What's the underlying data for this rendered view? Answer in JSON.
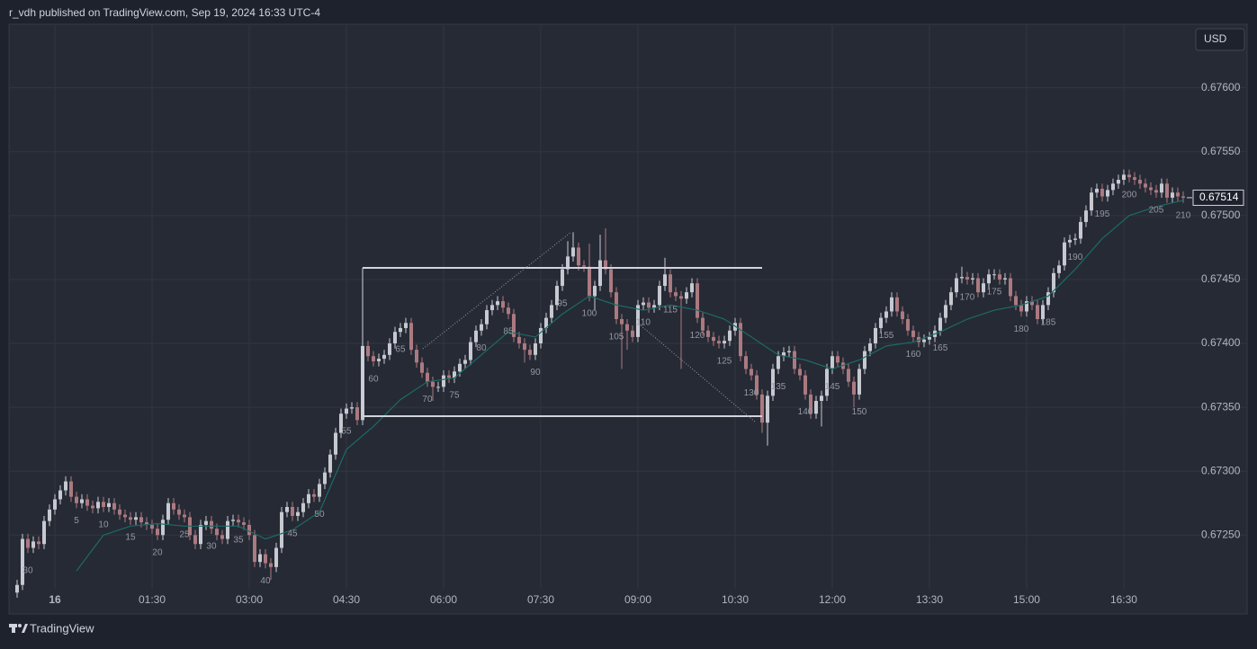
{
  "header": {
    "title": "r_vdh published on TradingView.com, Sep 19, 2024 16:33 UTC-4",
    "currency": "USD",
    "brand": "TradingView"
  },
  "chart_data": {
    "type": "candlestick",
    "up_color": "#c7c9d0",
    "down_color": "#ab7a80",
    "grid": true,
    "ylim": [
      0.67208,
      0.67649
    ],
    "yticks": [
      {
        "value": 0.6725,
        "label": "0.67250"
      },
      {
        "value": 0.673,
        "label": "0.67300"
      },
      {
        "value": 0.6735,
        "label": "0.67350"
      },
      {
        "value": 0.674,
        "label": "0.67400"
      },
      {
        "value": 0.6745,
        "label": "0.67450"
      },
      {
        "value": 0.675,
        "label": "0.67500"
      },
      {
        "value": 0.6755,
        "label": "0.67550"
      },
      {
        "value": 0.676,
        "label": "0.67600"
      }
    ],
    "xlim": [
      -7.5,
      211.67
    ],
    "xticks": [
      {
        "value": 1,
        "label": "16"
      },
      {
        "value": 19,
        "label": "01:30"
      },
      {
        "value": 37,
        "label": "03:00"
      },
      {
        "value": 55,
        "label": "04:30"
      },
      {
        "value": 73,
        "label": "06:00"
      },
      {
        "value": 91,
        "label": "07:30"
      },
      {
        "value": 109,
        "label": "09:00"
      },
      {
        "value": 127,
        "label": "10:30"
      },
      {
        "value": 145,
        "label": "12:00"
      },
      {
        "value": 163,
        "label": "13:30"
      },
      {
        "value": 181,
        "label": "15:00"
      },
      {
        "value": 199,
        "label": "16:30"
      }
    ],
    "x": [
      -6,
      -5,
      -4,
      -3,
      -2,
      -1,
      0,
      1,
      2,
      3,
      4,
      5,
      6,
      7,
      8,
      9,
      10,
      11,
      12,
      13,
      14,
      15,
      16,
      17,
      18,
      19,
      20,
      21,
      22,
      23,
      24,
      25,
      26,
      27,
      28,
      29,
      30,
      31,
      32,
      33,
      34,
      35,
      36,
      37,
      38,
      39,
      40,
      41,
      42,
      43,
      44,
      45,
      46,
      47,
      48,
      49,
      50,
      51,
      52,
      53,
      54,
      55,
      56,
      57,
      58,
      59,
      60,
      61,
      62,
      63,
      64,
      65,
      66,
      67,
      68,
      69,
      70,
      71,
      72,
      73,
      74,
      75,
      76,
      77,
      78,
      79,
      80,
      81,
      82,
      83,
      84,
      85,
      86,
      87,
      88,
      89,
      90,
      91,
      92,
      93,
      94,
      95,
      96,
      97,
      98,
      99,
      100,
      101,
      102,
      103,
      104,
      105,
      106,
      107,
      108,
      109,
      110,
      111,
      112,
      113,
      114,
      115,
      116,
      117,
      118,
      119,
      120,
      121,
      122,
      123,
      124,
      125,
      126,
      127,
      128,
      129,
      130,
      131,
      132,
      133,
      134,
      135,
      136,
      137,
      138,
      139,
      140,
      141,
      142,
      143,
      144,
      145,
      146,
      147,
      148,
      149,
      150,
      151,
      152,
      153,
      154,
      155,
      156,
      157,
      158,
      159,
      160,
      161,
      162,
      163,
      164,
      165,
      166,
      167,
      168,
      169,
      170,
      171,
      172,
      173,
      174,
      175,
      176,
      177,
      178,
      179,
      180,
      181,
      182,
      183,
      184,
      185,
      186,
      187,
      188,
      189,
      190,
      191,
      192,
      193,
      194,
      195,
      196,
      197,
      198,
      199,
      200,
      201,
      202,
      203,
      204,
      205,
      206,
      207,
      208,
      209,
      210
    ],
    "open": [
      0.67205,
      0.67211,
      0.67247,
      0.6724,
      0.67245,
      0.67243,
      0.67261,
      0.6727,
      0.67278,
      0.67285,
      0.67292,
      0.6728,
      0.67275,
      0.67278,
      0.67273,
      0.67271,
      0.67276,
      0.67272,
      0.67275,
      0.6727,
      0.67266,
      0.67264,
      0.67262,
      0.67264,
      0.6726,
      0.67258,
      0.67255,
      0.6725,
      0.67262,
      0.67275,
      0.6727,
      0.67266,
      0.67264,
      0.6725,
      0.67243,
      0.67258,
      0.67261,
      0.67255,
      0.6725,
      0.67247,
      0.67261,
      0.67262,
      0.6726,
      0.67258,
      0.6725,
      0.67229,
      0.67235,
      0.67228,
      0.67225,
      0.6724,
      0.67268,
      0.67272,
      0.67265,
      0.67268,
      0.67275,
      0.67282,
      0.6728,
      0.6729,
      0.67299,
      0.67313,
      0.6733,
      0.67345,
      0.67349,
      0.6735,
      0.6734,
      0.67398,
      0.6739,
      0.67386,
      0.67388,
      0.67391,
      0.674,
      0.67409,
      0.67412,
      0.67416,
      0.67395,
      0.67385,
      0.67377,
      0.6737,
      0.67366,
      0.67366,
      0.67375,
      0.67373,
      0.67378,
      0.67384,
      0.67387,
      0.67401,
      0.6741,
      0.67415,
      0.67426,
      0.6743,
      0.67433,
      0.67428,
      0.67423,
      0.67405,
      0.674,
      0.67395,
      0.67391,
      0.674,
      0.67412,
      0.6742,
      0.6743,
      0.67445,
      0.67458,
      0.67468,
      0.67475,
      0.67461,
      0.6746,
      0.67437,
      0.67445,
      0.67465,
      0.67458,
      0.6744,
      0.67419,
      0.67415,
      0.6741,
      0.67405,
      0.6743,
      0.67432,
      0.67428,
      0.6743,
      0.67445,
      0.67454,
      0.6744,
      0.67437,
      0.67435,
      0.6744,
      0.67447,
      0.6742,
      0.6741,
      0.67405,
      0.67402,
      0.674,
      0.67402,
      0.6741,
      0.67416,
      0.6739,
      0.6738,
      0.67375,
      0.6736,
      0.67338,
      0.67359,
      0.6738,
      0.6739,
      0.67393,
      0.67394,
      0.6738,
      0.67375,
      0.6736,
      0.67345,
      0.67355,
      0.67359,
      0.6738,
      0.6739,
      0.67385,
      0.6738,
      0.6737,
      0.6736,
      0.6738,
      0.67394,
      0.674,
      0.67412,
      0.6742,
      0.67425,
      0.67436,
      0.67425,
      0.67419,
      0.6741,
      0.67405,
      0.67401,
      0.67403,
      0.67405,
      0.6741,
      0.6742,
      0.6743,
      0.6744,
      0.67451,
      0.67452,
      0.6745,
      0.67451,
      0.6744,
      0.67447,
      0.67454,
      0.67454,
      0.6745,
      0.67451,
      0.67437,
      0.6743,
      0.67425,
      0.67433,
      0.6743,
      0.67419,
      0.6743,
      0.6744,
      0.67455,
      0.67461,
      0.67479,
      0.67481,
      0.67482,
      0.67495,
      0.67504,
      0.67518,
      0.67521,
      0.67515,
      0.6752,
      0.67525,
      0.67528,
      0.67532,
      0.6753,
      0.67528,
      0.67525,
      0.67522,
      0.6752,
      0.67518,
      0.67525,
      0.67514,
      0.67518,
      0.67515
    ],
    "high": [
      0.67215,
      0.67251,
      0.67251,
      0.67249,
      0.67249,
      0.67265,
      0.67274,
      0.67282,
      0.67289,
      0.67296,
      0.67296,
      0.67284,
      0.67282,
      0.67282,
      0.67277,
      0.6728,
      0.6728,
      0.67279,
      0.67279,
      0.67274,
      0.6727,
      0.67268,
      0.67268,
      0.67268,
      0.67264,
      0.67262,
      0.67259,
      0.67266,
      0.67279,
      0.67279,
      0.67274,
      0.6727,
      0.67268,
      0.67254,
      0.67262,
      0.67265,
      0.67265,
      0.67259,
      0.67254,
      0.67265,
      0.67266,
      0.67266,
      0.67264,
      0.67262,
      0.67254,
      0.67239,
      0.67239,
      0.67232,
      0.67244,
      0.67272,
      0.67276,
      0.67276,
      0.67272,
      0.67279,
      0.67286,
      0.67286,
      0.67294,
      0.67303,
      0.67317,
      0.67334,
      0.67349,
      0.67353,
      0.67354,
      0.67354,
      0.67402,
      0.67402,
      0.67394,
      0.67392,
      0.67395,
      0.67404,
      0.67413,
      0.67416,
      0.6742,
      0.6742,
      0.67399,
      0.67389,
      0.67381,
      0.67374,
      0.6737,
      0.67379,
      0.67379,
      0.67382,
      0.67388,
      0.67391,
      0.67405,
      0.67414,
      0.67419,
      0.6743,
      0.67434,
      0.67437,
      0.67437,
      0.67432,
      0.67427,
      0.67409,
      0.67404,
      0.67399,
      0.67404,
      0.67416,
      0.67424,
      0.67434,
      0.67449,
      0.67462,
      0.6748,
      0.67487,
      0.67479,
      0.67465,
      0.67478,
      0.67449,
      0.67485,
      0.6749,
      0.67462,
      0.67444,
      0.67423,
      0.67419,
      0.67414,
      0.67434,
      0.67436,
      0.67436,
      0.67434,
      0.67449,
      0.67467,
      0.67458,
      0.67444,
      0.67441,
      0.67444,
      0.67451,
      0.67451,
      0.67424,
      0.67414,
      0.67409,
      0.67406,
      0.67406,
      0.67414,
      0.6742,
      0.6742,
      0.67394,
      0.67384,
      0.67379,
      0.67364,
      0.67363,
      0.67384,
      0.67394,
      0.67397,
      0.67398,
      0.67398,
      0.67384,
      0.67379,
      0.67364,
      0.67359,
      0.67363,
      0.67384,
      0.67394,
      0.67394,
      0.67389,
      0.67384,
      0.67374,
      0.67384,
      0.67398,
      0.67404,
      0.67416,
      0.67424,
      0.67429,
      0.6744,
      0.6744,
      0.67429,
      0.67423,
      0.67414,
      0.67409,
      0.67407,
      0.67409,
      0.67414,
      0.67424,
      0.67434,
      0.67444,
      0.67455,
      0.6746,
      0.67456,
      0.67455,
      0.67455,
      0.67451,
      0.67458,
      0.67458,
      0.67458,
      0.67455,
      0.67455,
      0.67441,
      0.67434,
      0.67437,
      0.67437,
      0.67434,
      0.67434,
      0.67444,
      0.67459,
      0.67465,
      0.67483,
      0.67485,
      0.67486,
      0.67499,
      0.67508,
      0.67522,
      0.67525,
      0.67525,
      0.67524,
      0.67529,
      0.67532,
      0.67536,
      0.67536,
      0.67534,
      0.67532,
      0.67529,
      0.67526,
      0.67524,
      0.67529,
      0.67529,
      0.67522,
      0.67522,
      0.67519
    ],
    "low": [
      0.67201,
      0.67207,
      0.67236,
      0.67236,
      0.67239,
      0.67239,
      0.67257,
      0.67266,
      0.67274,
      0.67281,
      0.67276,
      0.67271,
      0.67271,
      0.67269,
      0.67267,
      0.67267,
      0.67268,
      0.67268,
      0.67266,
      0.67262,
      0.6726,
      0.67258,
      0.67258,
      0.67256,
      0.67254,
      0.67251,
      0.67246,
      0.67246,
      0.67258,
      0.67266,
      0.67262,
      0.6726,
      0.67246,
      0.67239,
      0.67239,
      0.67254,
      0.67251,
      0.67246,
      0.67243,
      0.67243,
      0.67257,
      0.67256,
      0.67254,
      0.67246,
      0.67225,
      0.67225,
      0.67224,
      0.67215,
      0.67221,
      0.67236,
      0.67264,
      0.67261,
      0.67261,
      0.67264,
      0.67271,
      0.67276,
      0.67276,
      0.67286,
      0.67295,
      0.67309,
      0.67326,
      0.67341,
      0.67345,
      0.67336,
      0.67336,
      0.67386,
      0.67382,
      0.67382,
      0.67384,
      0.67387,
      0.67396,
      0.67405,
      0.67408,
      0.67391,
      0.67381,
      0.67373,
      0.67366,
      0.67355,
      0.67362,
      0.67362,
      0.67369,
      0.67369,
      0.67374,
      0.6738,
      0.67383,
      0.67397,
      0.67406,
      0.67411,
      0.67422,
      0.67426,
      0.67424,
      0.67419,
      0.67401,
      0.67396,
      0.67385,
      0.67387,
      0.67387,
      0.67396,
      0.67408,
      0.67416,
      0.67426,
      0.67441,
      0.67454,
      0.67464,
      0.67457,
      0.67456,
      0.67433,
      0.67426,
      0.67441,
      0.67454,
      0.67436,
      0.67415,
      0.6738,
      0.67395,
      0.67401,
      0.67401,
      0.67426,
      0.67424,
      0.67424,
      0.67426,
      0.67441,
      0.67436,
      0.67433,
      0.6738,
      0.67431,
      0.67436,
      0.67416,
      0.67406,
      0.67401,
      0.67398,
      0.67396,
      0.67396,
      0.67398,
      0.67406,
      0.67386,
      0.67376,
      0.67371,
      0.67356,
      0.6733,
      0.6732,
      0.67355,
      0.67376,
      0.67386,
      0.67389,
      0.67376,
      0.67371,
      0.67356,
      0.67341,
      0.67341,
      0.67335,
      0.67355,
      0.67376,
      0.67381,
      0.67376,
      0.67366,
      0.6735,
      0.67356,
      0.67376,
      0.6739,
      0.67396,
      0.67408,
      0.67416,
      0.67421,
      0.67421,
      0.67415,
      0.67406,
      0.67401,
      0.67397,
      0.67397,
      0.67399,
      0.67401,
      0.67406,
      0.67416,
      0.67426,
      0.67436,
      0.67447,
      0.67446,
      0.67446,
      0.67436,
      0.67436,
      0.67443,
      0.6745,
      0.67446,
      0.67446,
      0.67433,
      0.67426,
      0.67421,
      0.67421,
      0.67426,
      0.67415,
      0.67415,
      0.67426,
      0.67436,
      0.67451,
      0.67457,
      0.67475,
      0.67477,
      0.67478,
      0.67491,
      0.675,
      0.67514,
      0.67511,
      0.67511,
      0.67516,
      0.67521,
      0.67524,
      0.67526,
      0.67524,
      0.67521,
      0.67518,
      0.67516,
      0.67514,
      0.67514,
      0.6751,
      0.6751,
      0.67511,
      0.6751
    ],
    "close": [
      0.67211,
      0.67247,
      0.6724,
      0.67245,
      0.67243,
      0.67261,
      0.6727,
      0.67278,
      0.67285,
      0.67292,
      0.6728,
      0.67275,
      0.67278,
      0.67273,
      0.67271,
      0.67276,
      0.67272,
      0.67275,
      0.6727,
      0.67266,
      0.67264,
      0.67262,
      0.67264,
      0.6726,
      0.67258,
      0.67255,
      0.6725,
      0.67262,
      0.67275,
      0.6727,
      0.67266,
      0.67264,
      0.6725,
      0.67243,
      0.67258,
      0.67261,
      0.67255,
      0.6725,
      0.67247,
      0.67261,
      0.67262,
      0.6726,
      0.67258,
      0.6725,
      0.67229,
      0.67235,
      0.67228,
      0.67225,
      0.6724,
      0.67268,
      0.67272,
      0.67265,
      0.67268,
      0.67275,
      0.67282,
      0.6728,
      0.6729,
      0.67299,
      0.67313,
      0.6733,
      0.67345,
      0.67349,
      0.6735,
      0.6734,
      0.67398,
      0.6739,
      0.67386,
      0.67388,
      0.67391,
      0.674,
      0.67409,
      0.67412,
      0.67416,
      0.67395,
      0.67385,
      0.67377,
      0.6737,
      0.67366,
      0.67366,
      0.67375,
      0.67373,
      0.67378,
      0.67384,
      0.67387,
      0.67401,
      0.6741,
      0.67415,
      0.67426,
      0.6743,
      0.67433,
      0.67428,
      0.67423,
      0.67405,
      0.674,
      0.67395,
      0.67391,
      0.674,
      0.67412,
      0.6742,
      0.6743,
      0.67445,
      0.67458,
      0.67468,
      0.67475,
      0.67461,
      0.6746,
      0.67437,
      0.67445,
      0.67465,
      0.67458,
      0.6744,
      0.67419,
      0.67415,
      0.6741,
      0.67405,
      0.6743,
      0.67432,
      0.67428,
      0.6743,
      0.67445,
      0.67454,
      0.6744,
      0.67437,
      0.67435,
      0.6744,
      0.67447,
      0.6742,
      0.6741,
      0.67405,
      0.67402,
      0.674,
      0.67402,
      0.6741,
      0.67416,
      0.6739,
      0.6738,
      0.67375,
      0.6736,
      0.67338,
      0.67359,
      0.6738,
      0.6739,
      0.67393,
      0.67394,
      0.6738,
      0.67375,
      0.6736,
      0.67345,
      0.67355,
      0.67359,
      0.6738,
      0.6739,
      0.67385,
      0.6738,
      0.6737,
      0.6736,
      0.6738,
      0.67394,
      0.674,
      0.67412,
      0.6742,
      0.67425,
      0.67436,
      0.67425,
      0.67419,
      0.6741,
      0.67405,
      0.67401,
      0.67403,
      0.67405,
      0.6741,
      0.6742,
      0.6743,
      0.6744,
      0.67451,
      0.67452,
      0.6745,
      0.67451,
      0.6744,
      0.67447,
      0.67454,
      0.67454,
      0.6745,
      0.67451,
      0.67437,
      0.6743,
      0.67425,
      0.67433,
      0.6743,
      0.67419,
      0.6743,
      0.6744,
      0.67455,
      0.67461,
      0.67479,
      0.67481,
      0.67482,
      0.67495,
      0.67504,
      0.67518,
      0.67521,
      0.67515,
      0.6752,
      0.67525,
      0.67528,
      0.67532,
      0.6753,
      0.67528,
      0.67525,
      0.67522,
      0.6752,
      0.67518,
      0.67525,
      0.67514,
      0.67518,
      0.67515,
      0.67514
    ],
    "ma": {
      "color": "#1b6b66",
      "x": [
        5,
        10,
        15,
        20,
        25,
        30,
        35,
        40,
        45,
        50,
        55,
        60,
        65,
        70,
        75,
        80,
        85,
        90,
        95,
        100,
        105,
        110,
        115,
        120,
        125,
        130,
        135,
        140,
        145,
        150,
        155,
        160,
        165,
        170,
        175,
        180,
        185,
        190,
        195,
        200,
        205,
        210
      ],
      "values": [
        0.67222,
        0.6725,
        0.67257,
        0.67259,
        0.67257,
        0.67257,
        0.67257,
        0.67247,
        0.67254,
        0.67268,
        0.67317,
        0.67335,
        0.67356,
        0.6737,
        0.67373,
        0.67391,
        0.67409,
        0.67405,
        0.67423,
        0.67437,
        0.6743,
        0.67426,
        0.6743,
        0.67426,
        0.67419,
        0.67405,
        0.67391,
        0.67387,
        0.6738,
        0.67387,
        0.67398,
        0.67401,
        0.67409,
        0.67419,
        0.67426,
        0.6743,
        0.67437,
        0.67458,
        0.67482,
        0.675,
        0.67507,
        0.67512
      ]
    },
    "count_labels": [
      5,
      10,
      15,
      20,
      25,
      30,
      35,
      40,
      45,
      50,
      55,
      60,
      65,
      70,
      75,
      80,
      85,
      90,
      95,
      100,
      105,
      110,
      115,
      120,
      125,
      130,
      135,
      140,
      145,
      150,
      155,
      160,
      165,
      170,
      175,
      180,
      185,
      190,
      195,
      200,
      205,
      210
    ],
    "annotations": [
      {
        "text": "30",
        "x": -4
      }
    ]
  }
}
